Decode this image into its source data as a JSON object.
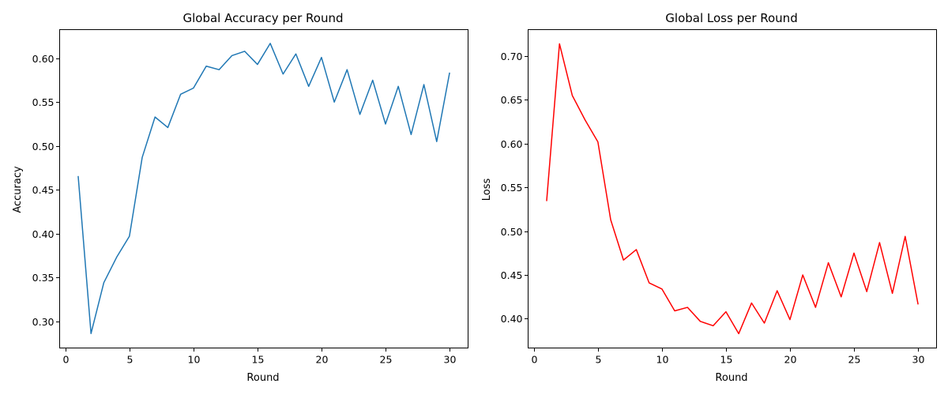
{
  "chart_data": [
    {
      "type": "line",
      "title": "Global Accuracy per Round",
      "xlabel": "Round",
      "ylabel": "Accuracy",
      "xlim": [
        -0.45,
        31.45
      ],
      "ylim": [
        0.2695,
        0.6327
      ],
      "xticks": [
        0,
        5,
        10,
        15,
        20,
        25,
        30
      ],
      "xtick_labels": [
        "0",
        "5",
        "10",
        "15",
        "20",
        "25",
        "30"
      ],
      "yticks": [
        0.3,
        0.35,
        0.4,
        0.45,
        0.5,
        0.55,
        0.6
      ],
      "ytick_labels": [
        "0.30",
        "0.35",
        "0.40",
        "0.45",
        "0.50",
        "0.55",
        "0.60"
      ],
      "grid": false,
      "color": "#1f77b4",
      "x": [
        1,
        2,
        3,
        4,
        5,
        6,
        7,
        8,
        9,
        10,
        11,
        12,
        13,
        14,
        15,
        16,
        17,
        18,
        19,
        20,
        21,
        22,
        23,
        24,
        25,
        26,
        27,
        28,
        29,
        30
      ],
      "y": [
        0.465,
        0.286,
        0.344,
        0.373,
        0.397,
        0.487,
        0.533,
        0.521,
        0.559,
        0.566,
        0.591,
        0.587,
        0.603,
        0.608,
        0.593,
        0.617,
        0.582,
        0.605,
        0.568,
        0.601,
        0.55,
        0.587,
        0.536,
        0.575,
        0.525,
        0.568,
        0.513,
        0.57,
        0.505,
        0.583
      ]
    },
    {
      "type": "line",
      "title": "Global Loss per Round",
      "xlabel": "Round",
      "ylabel": "Loss",
      "xlim": [
        -0.45,
        31.45
      ],
      "ylim": [
        0.3666,
        0.7302
      ],
      "xticks": [
        0,
        5,
        10,
        15,
        20,
        25,
        30
      ],
      "xtick_labels": [
        "0",
        "5",
        "10",
        "15",
        "20",
        "25",
        "30"
      ],
      "yticks": [
        0.4,
        0.45,
        0.5,
        0.55,
        0.6,
        0.65,
        0.7
      ],
      "ytick_labels": [
        "0.40",
        "0.45",
        "0.50",
        "0.55",
        "0.60",
        "0.65",
        "0.70"
      ],
      "grid": false,
      "color": "#ff0000",
      "x": [
        1,
        2,
        3,
        4,
        5,
        6,
        7,
        8,
        9,
        10,
        11,
        12,
        13,
        14,
        15,
        16,
        17,
        18,
        19,
        20,
        21,
        22,
        23,
        24,
        25,
        26,
        27,
        28,
        29,
        30
      ],
      "y": [
        0.535,
        0.714,
        0.655,
        0.627,
        0.602,
        0.513,
        0.467,
        0.479,
        0.441,
        0.434,
        0.409,
        0.413,
        0.397,
        0.392,
        0.408,
        0.383,
        0.418,
        0.395,
        0.432,
        0.399,
        0.45,
        0.413,
        0.464,
        0.425,
        0.475,
        0.431,
        0.487,
        0.429,
        0.494,
        0.417
      ]
    }
  ]
}
